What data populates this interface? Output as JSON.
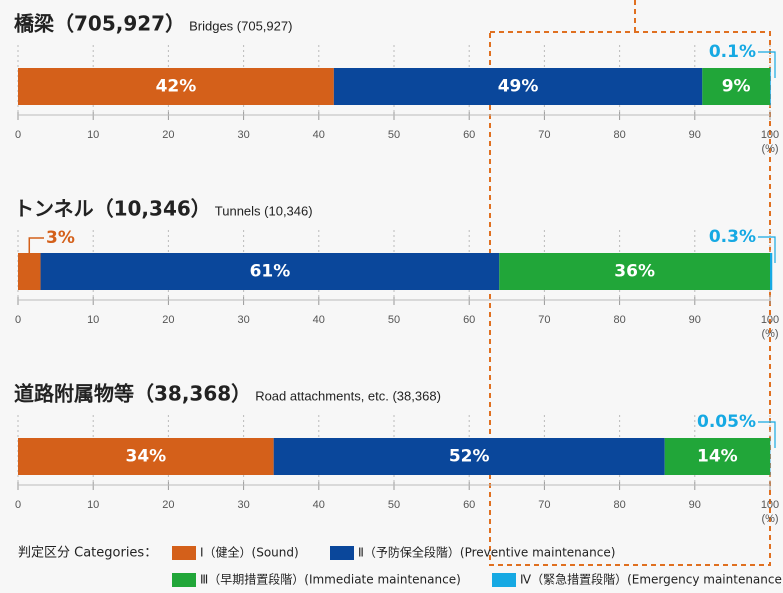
{
  "legend": {
    "title": "判定区分 Categories：",
    "items": [
      {
        "name": "Ⅰ（健全）(Sound)",
        "color": "#d4601a"
      },
      {
        "name": "Ⅱ（予防保全段階）(Preventive maintenance)",
        "color": "#0a479b"
      },
      {
        "name": "Ⅲ（早期措置段階）(Immediate maintenance)",
        "color": "#21a639"
      },
      {
        "name": "Ⅳ（緊急措置段階）(Emergency maintenance)",
        "color": "#16a9e3"
      }
    ]
  },
  "chart_data": [
    {
      "type": "bar",
      "title": "橋梁（705,927）",
      "subtitle": "Bridges (705,927)",
      "series": [
        {
          "values": [
            42
          ],
          "value_labels": [
            "42%"
          ]
        },
        {
          "values": [
            49
          ],
          "value_labels": [
            "49%"
          ]
        },
        {
          "values": [
            9
          ],
          "value_labels": [
            "9%"
          ]
        },
        {
          "values": [
            0.1
          ],
          "value_labels": [
            "0.1%"
          ]
        }
      ],
      "xlim": [
        0,
        100
      ],
      "xticks": [
        0,
        10,
        20,
        30,
        40,
        50,
        60,
        70,
        80,
        90,
        100
      ],
      "xlabel": "(%)",
      "grid": true
    },
    {
      "type": "bar",
      "title": "トンネル（10,346）",
      "subtitle": "Tunnels (10,346)",
      "series": [
        {
          "values": [
            3
          ],
          "value_labels": [
            "3%"
          ]
        },
        {
          "values": [
            61
          ],
          "value_labels": [
            "61%"
          ]
        },
        {
          "values": [
            36
          ],
          "value_labels": [
            "36%"
          ]
        },
        {
          "values": [
            0.3
          ],
          "value_labels": [
            "0.3%"
          ]
        }
      ],
      "xlim": [
        0,
        100
      ],
      "xticks": [
        0,
        10,
        20,
        30,
        40,
        50,
        60,
        70,
        80,
        90,
        100
      ],
      "xlabel": "(%)",
      "grid": true
    },
    {
      "type": "bar",
      "title": "道路附属物等（38,368）",
      "subtitle": "Road attachments, etc. (38,368)",
      "series": [
        {
          "values": [
            34
          ],
          "value_labels": [
            "34%"
          ]
        },
        {
          "values": [
            52
          ],
          "value_labels": [
            "52%"
          ]
        },
        {
          "values": [
            14
          ],
          "value_labels": [
            "14%"
          ]
        },
        {
          "values": [
            0.05
          ],
          "value_labels": [
            "0.05%"
          ]
        }
      ],
      "xlim": [
        0,
        100
      ],
      "xticks": [
        0,
        10,
        20,
        30,
        40,
        50,
        60,
        70,
        80,
        90,
        100
      ],
      "xlabel": "(%)",
      "grid": true
    }
  ]
}
